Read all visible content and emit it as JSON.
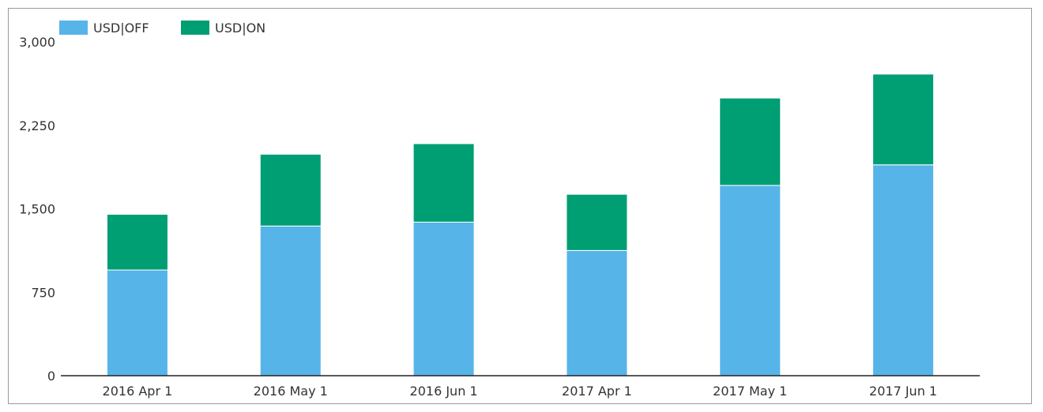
{
  "chart_data": {
    "type": "bar",
    "stacked": true,
    "categories": [
      "2016 Apr 1",
      "2016 May 1",
      "2016 Jun 1",
      "2017 Apr 1",
      "2017 May 1",
      "2017 Jun 1"
    ],
    "series": [
      {
        "name": "USD|OFF",
        "color": "#56b4e9",
        "values": [
          950,
          1345,
          1380,
          1125,
          1710,
          1895
        ]
      },
      {
        "name": "USD|ON",
        "color": "#009e73",
        "values": [
          500,
          645,
          705,
          505,
          785,
          815
        ]
      }
    ],
    "y_ticks": [
      "0",
      "750",
      "1,500",
      "2,250",
      "3,000"
    ],
    "y_tick_values": [
      0,
      750,
      1500,
      2250,
      3000
    ],
    "ylim": [
      0,
      3000
    ],
    "title": "",
    "xlabel": "",
    "ylabel": "",
    "grid": false,
    "legend_position": "top-left"
  }
}
